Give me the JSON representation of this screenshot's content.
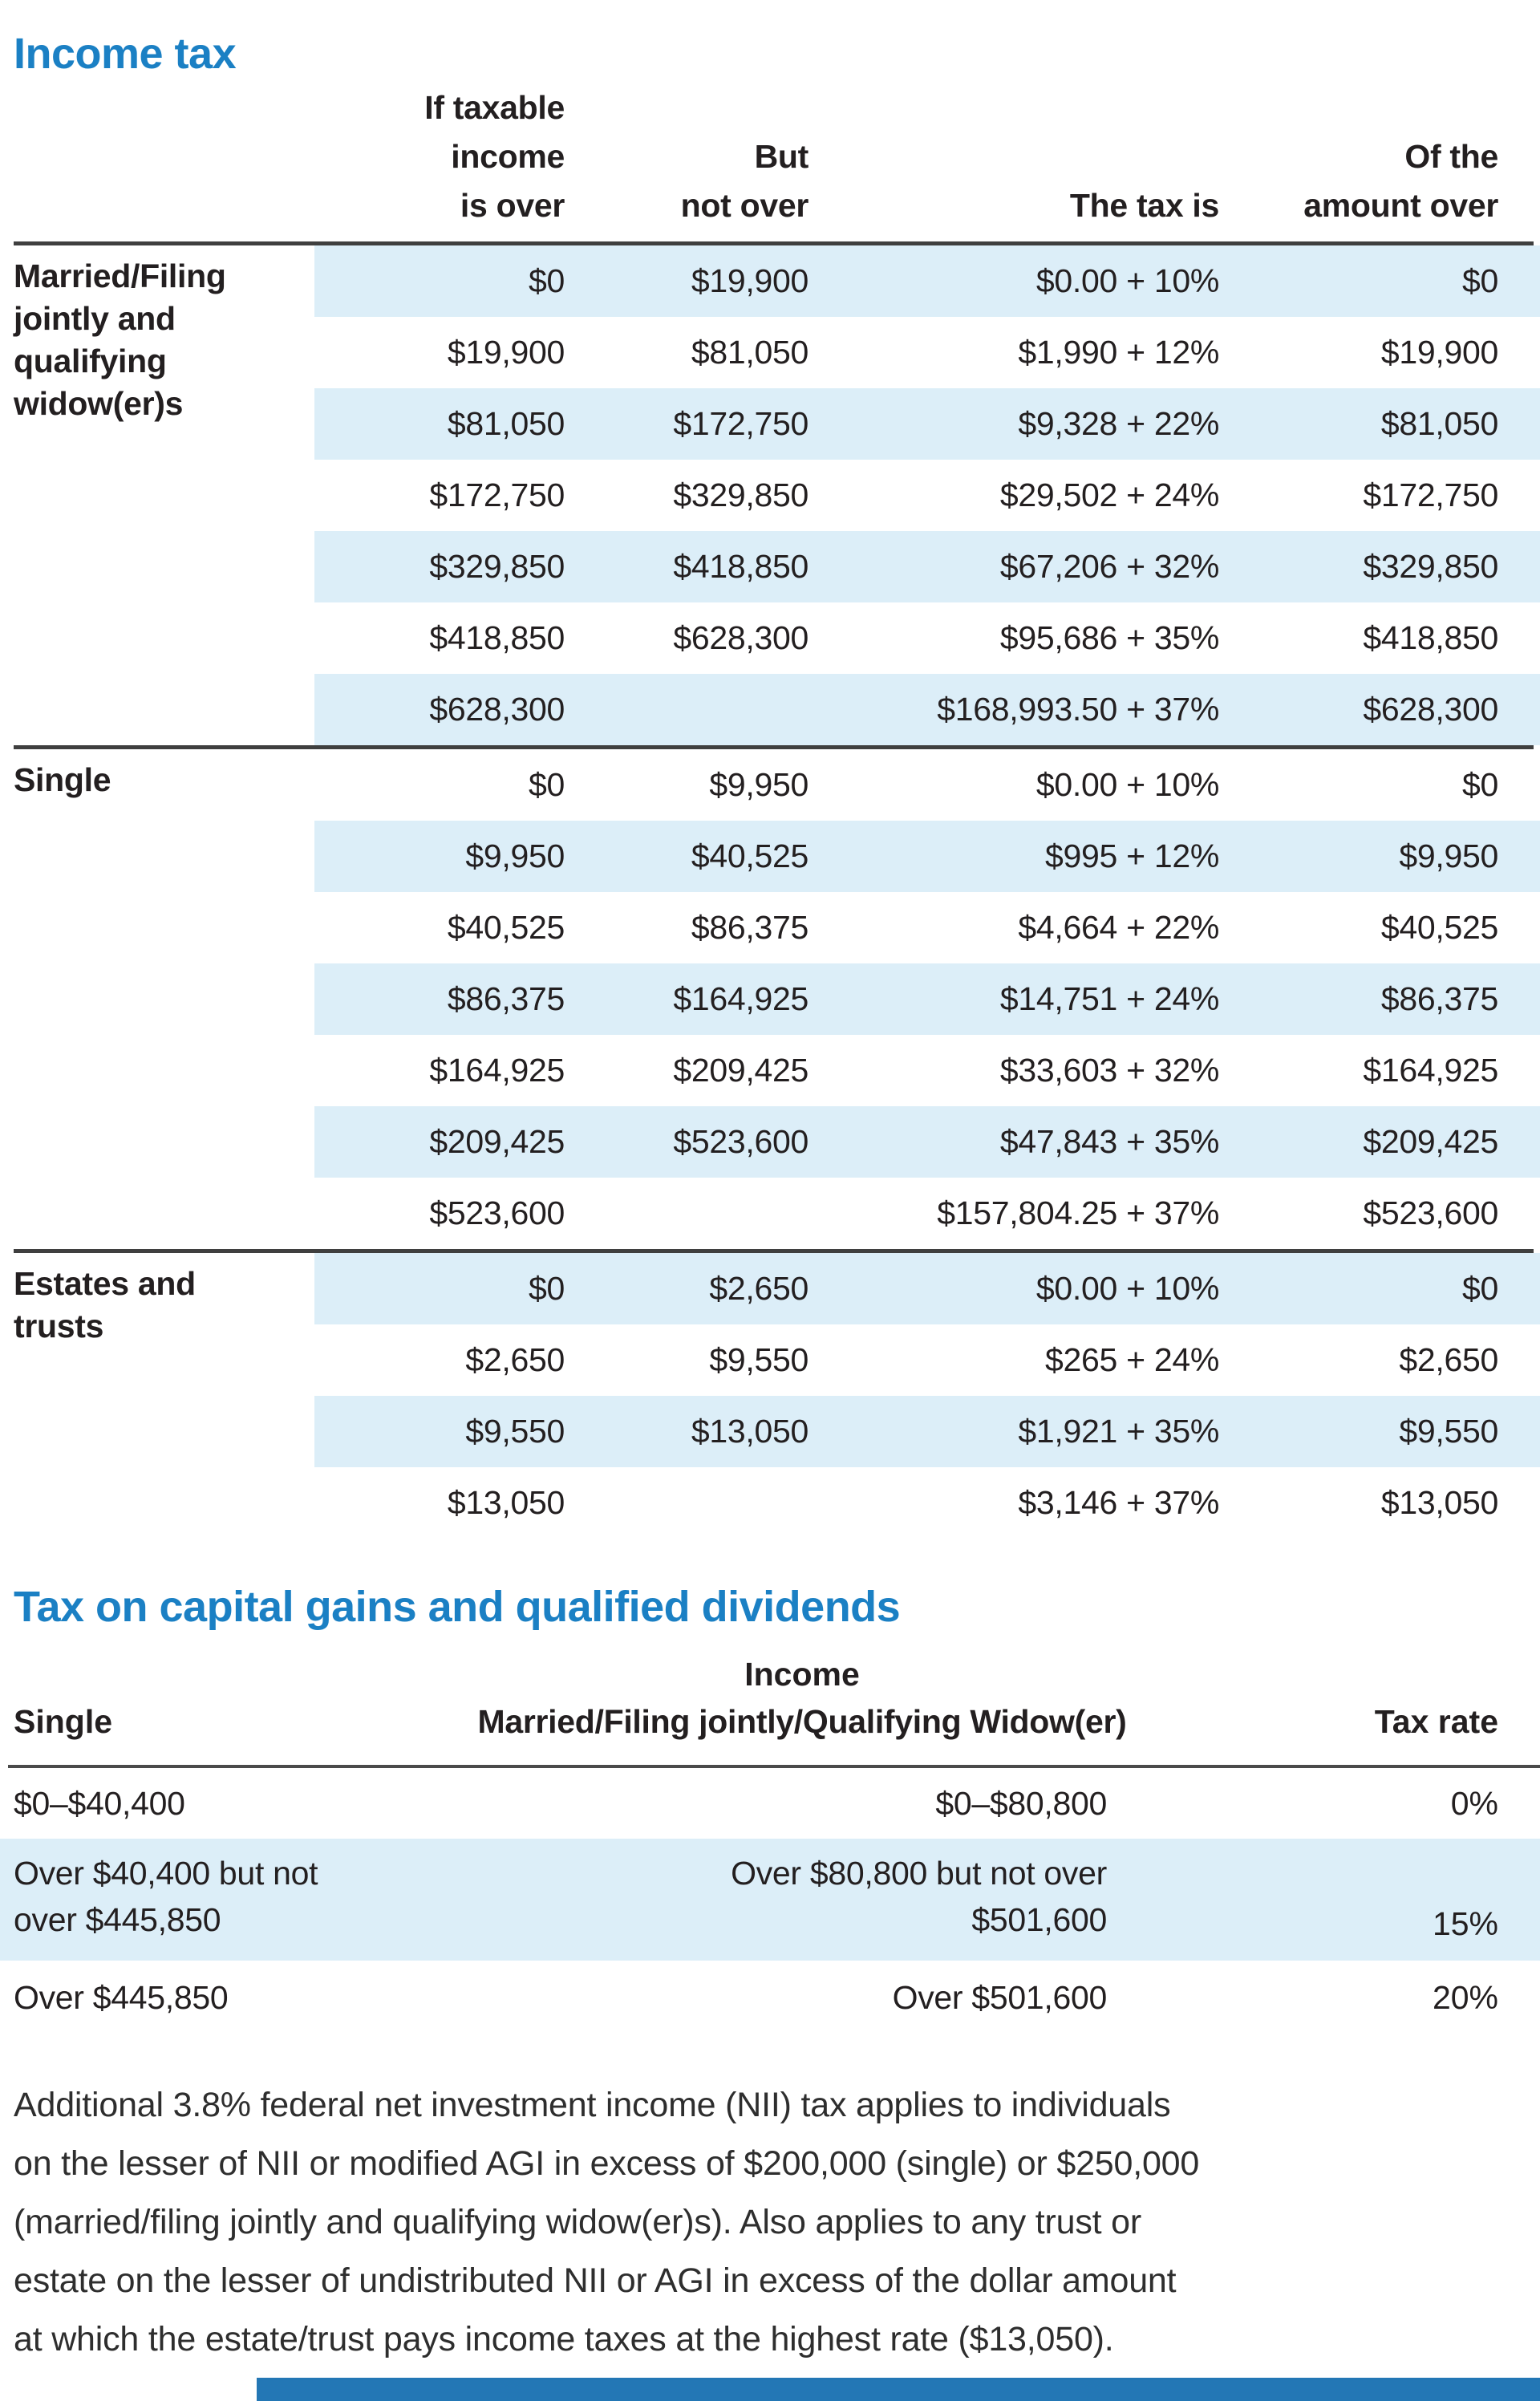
{
  "income_tax": {
    "title": "Income tax",
    "col_headers": [
      "If taxable\nincome\nis over",
      "But\nnot over",
      "The tax is",
      "Of the\namount over"
    ],
    "groups": [
      {
        "label": "Married/Filing\njointly and\nqualifying\nwidow(er)s",
        "rows": [
          [
            "$0",
            "$19,900",
            "$0.00 + 10%",
            "$0"
          ],
          [
            "$19,900",
            "$81,050",
            "$1,990 + 12%",
            "$19,900"
          ],
          [
            "$81,050",
            "$172,750",
            "$9,328 + 22%",
            "$81,050"
          ],
          [
            "$172,750",
            "$329,850",
            "$29,502 + 24%",
            "$172,750"
          ],
          [
            "$329,850",
            "$418,850",
            "$67,206 + 32%",
            "$329,850"
          ],
          [
            "$418,850",
            "$628,300",
            "$95,686 + 35%",
            "$418,850"
          ],
          [
            "$628,300",
            "",
            "$168,993.50 + 37%",
            "$628,300"
          ]
        ]
      },
      {
        "label": "Single",
        "rows": [
          [
            "$0",
            "$9,950",
            "$0.00 + 10%",
            "$0"
          ],
          [
            "$9,950",
            "$40,525",
            "$995 + 12%",
            "$9,950"
          ],
          [
            "$40,525",
            "$86,375",
            "$4,664 + 22%",
            "$40,525"
          ],
          [
            "$86,375",
            "$164,925",
            "$14,751 + 24%",
            "$86,375"
          ],
          [
            "$164,925",
            "$209,425",
            "$33,603 + 32%",
            "$164,925"
          ],
          [
            "$209,425",
            "$523,600",
            "$47,843 + 35%",
            "$209,425"
          ],
          [
            "$523,600",
            "",
            "$157,804.25 + 37%",
            "$523,600"
          ]
        ]
      },
      {
        "label": "Estates and\ntrusts",
        "rows": [
          [
            "$0",
            "$2,650",
            "$0.00 + 10%",
            "$0"
          ],
          [
            "$2,650",
            "$9,550",
            "$265 + 24%",
            "$2,650"
          ],
          [
            "$9,550",
            "$13,050",
            "$1,921 + 35%",
            "$9,550"
          ],
          [
            "$13,050",
            "",
            "$3,146 + 37%",
            "$13,050"
          ]
        ]
      }
    ]
  },
  "capital_gains": {
    "title": "Tax on capital gains and qualified dividends",
    "income_header": "Income",
    "col_headers": [
      "Single",
      "Married/Filing jointly/Qualifying Widow(er)",
      "Tax rate"
    ],
    "rows": [
      {
        "single": "$0–$40,400",
        "married": "$0–$80,800",
        "rate": "0%"
      },
      {
        "single": "Over $40,400 but not\nover $445,850",
        "married": "Over $80,800 but not over\n$501,600",
        "rate": "15%"
      },
      {
        "single": "Over $445,850",
        "married": "Over $501,600",
        "rate": "20%"
      }
    ]
  },
  "footnote": "Additional 3.8% federal net investment income (NII) tax applies to individuals\non the lesser of NII or modified AGI in excess of $200,000 (single) or $250,000\n(married/filing jointly and qualifying widow(er)s). Also applies to any trust or\nestate on the lesser of undistributed NII or AGI in excess of the dollar amount\nat which the estate/trust pays income taxes at the highest rate ($13,050).",
  "colors": {
    "accent_blue": "#1b80c4",
    "row_stripe": "#dceef8",
    "bottom_bar": "#2377b5",
    "text": "#231f20"
  }
}
